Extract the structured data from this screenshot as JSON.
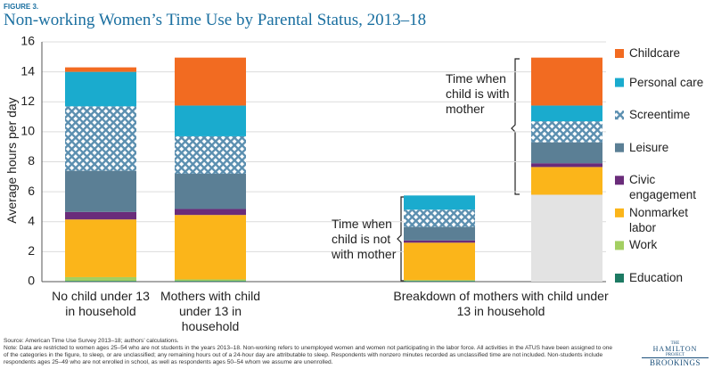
{
  "chart_data": {
    "type": "stacked_bar",
    "figure_label": "FIGURE 3.",
    "title": "Non-working Women’s Time Use by Parental Status, 2013–18",
    "y_label": "Average hours per day",
    "categories": [
      "No child under 13 in household",
      "Mothers with child under 13 in household",
      null,
      null
    ],
    "group_label": "Breakdown of mothers with child under 13 in household",
    "ylim": [
      0,
      16
    ],
    "yticks": [
      0,
      2,
      4,
      6,
      8,
      10,
      12,
      14,
      16
    ],
    "grid": true,
    "series": [
      {
        "color": "#e3e3e3",
        "values": [
          null,
          null,
          null,
          5.8
        ]
      },
      {
        "name": "Education",
        "color": "#1d7a63",
        "values": [
          0.05,
          0.05,
          0.05,
          null
        ]
      },
      {
        "name": "Work",
        "color": "#a3cf62",
        "values": [
          0.25,
          0.1,
          0.05,
          null
        ]
      },
      {
        "name": "Nonmarket labor",
        "color": "#fbb51a",
        "values": [
          3.85,
          4.3,
          2.5,
          1.85
        ]
      },
      {
        "name": "Civic engagement",
        "color": "#6a2c7a",
        "values": [
          0.5,
          0.4,
          0.15,
          0.25
        ]
      },
      {
        "name": "Leisure",
        "color": "#5b7f95",
        "values": [
          2.75,
          2.35,
          0.9,
          1.4
        ]
      },
      {
        "name": "Screentime",
        "color": "#5b8fb0",
        "pattern": "crosshatch",
        "values": [
          4.3,
          2.5,
          1.15,
          1.4
        ]
      },
      {
        "name": "Personal care",
        "color": "#1aabce",
        "values": [
          2.3,
          2.05,
          0.95,
          1.05
        ]
      },
      {
        "name": "Childcare",
        "color": "#f26b21",
        "values": [
          0.3,
          3.2,
          null,
          3.2
        ]
      }
    ],
    "annotations": [
      "Time when child is with mother",
      "Time when child is not with mother"
    ],
    "source": "Source: American Time Use Survey 2013–18; authors’ calculations.",
    "note": "Note: Data are restricted to women ages 25–54 who are not students in the years 2013–18. Non-working refers to unemployed women and women not participating in the labor force. All activities in the ATUS have been assigned to one of the categories in the figure, to sleep, or are unclassified; any remaining hours out of a 24-hour day are attributable to sleep. Respondents with nonzero minutes recorded as unclassified time are not included. Non-students include respondents ages 25–49 who are not enrolled in school, as well as respondents ages 50–54 whom we assume are unenrolled.",
    "logo": [
      "THE",
      "HAMILTON",
      "PROJECT",
      "BROOKINGS"
    ]
  }
}
